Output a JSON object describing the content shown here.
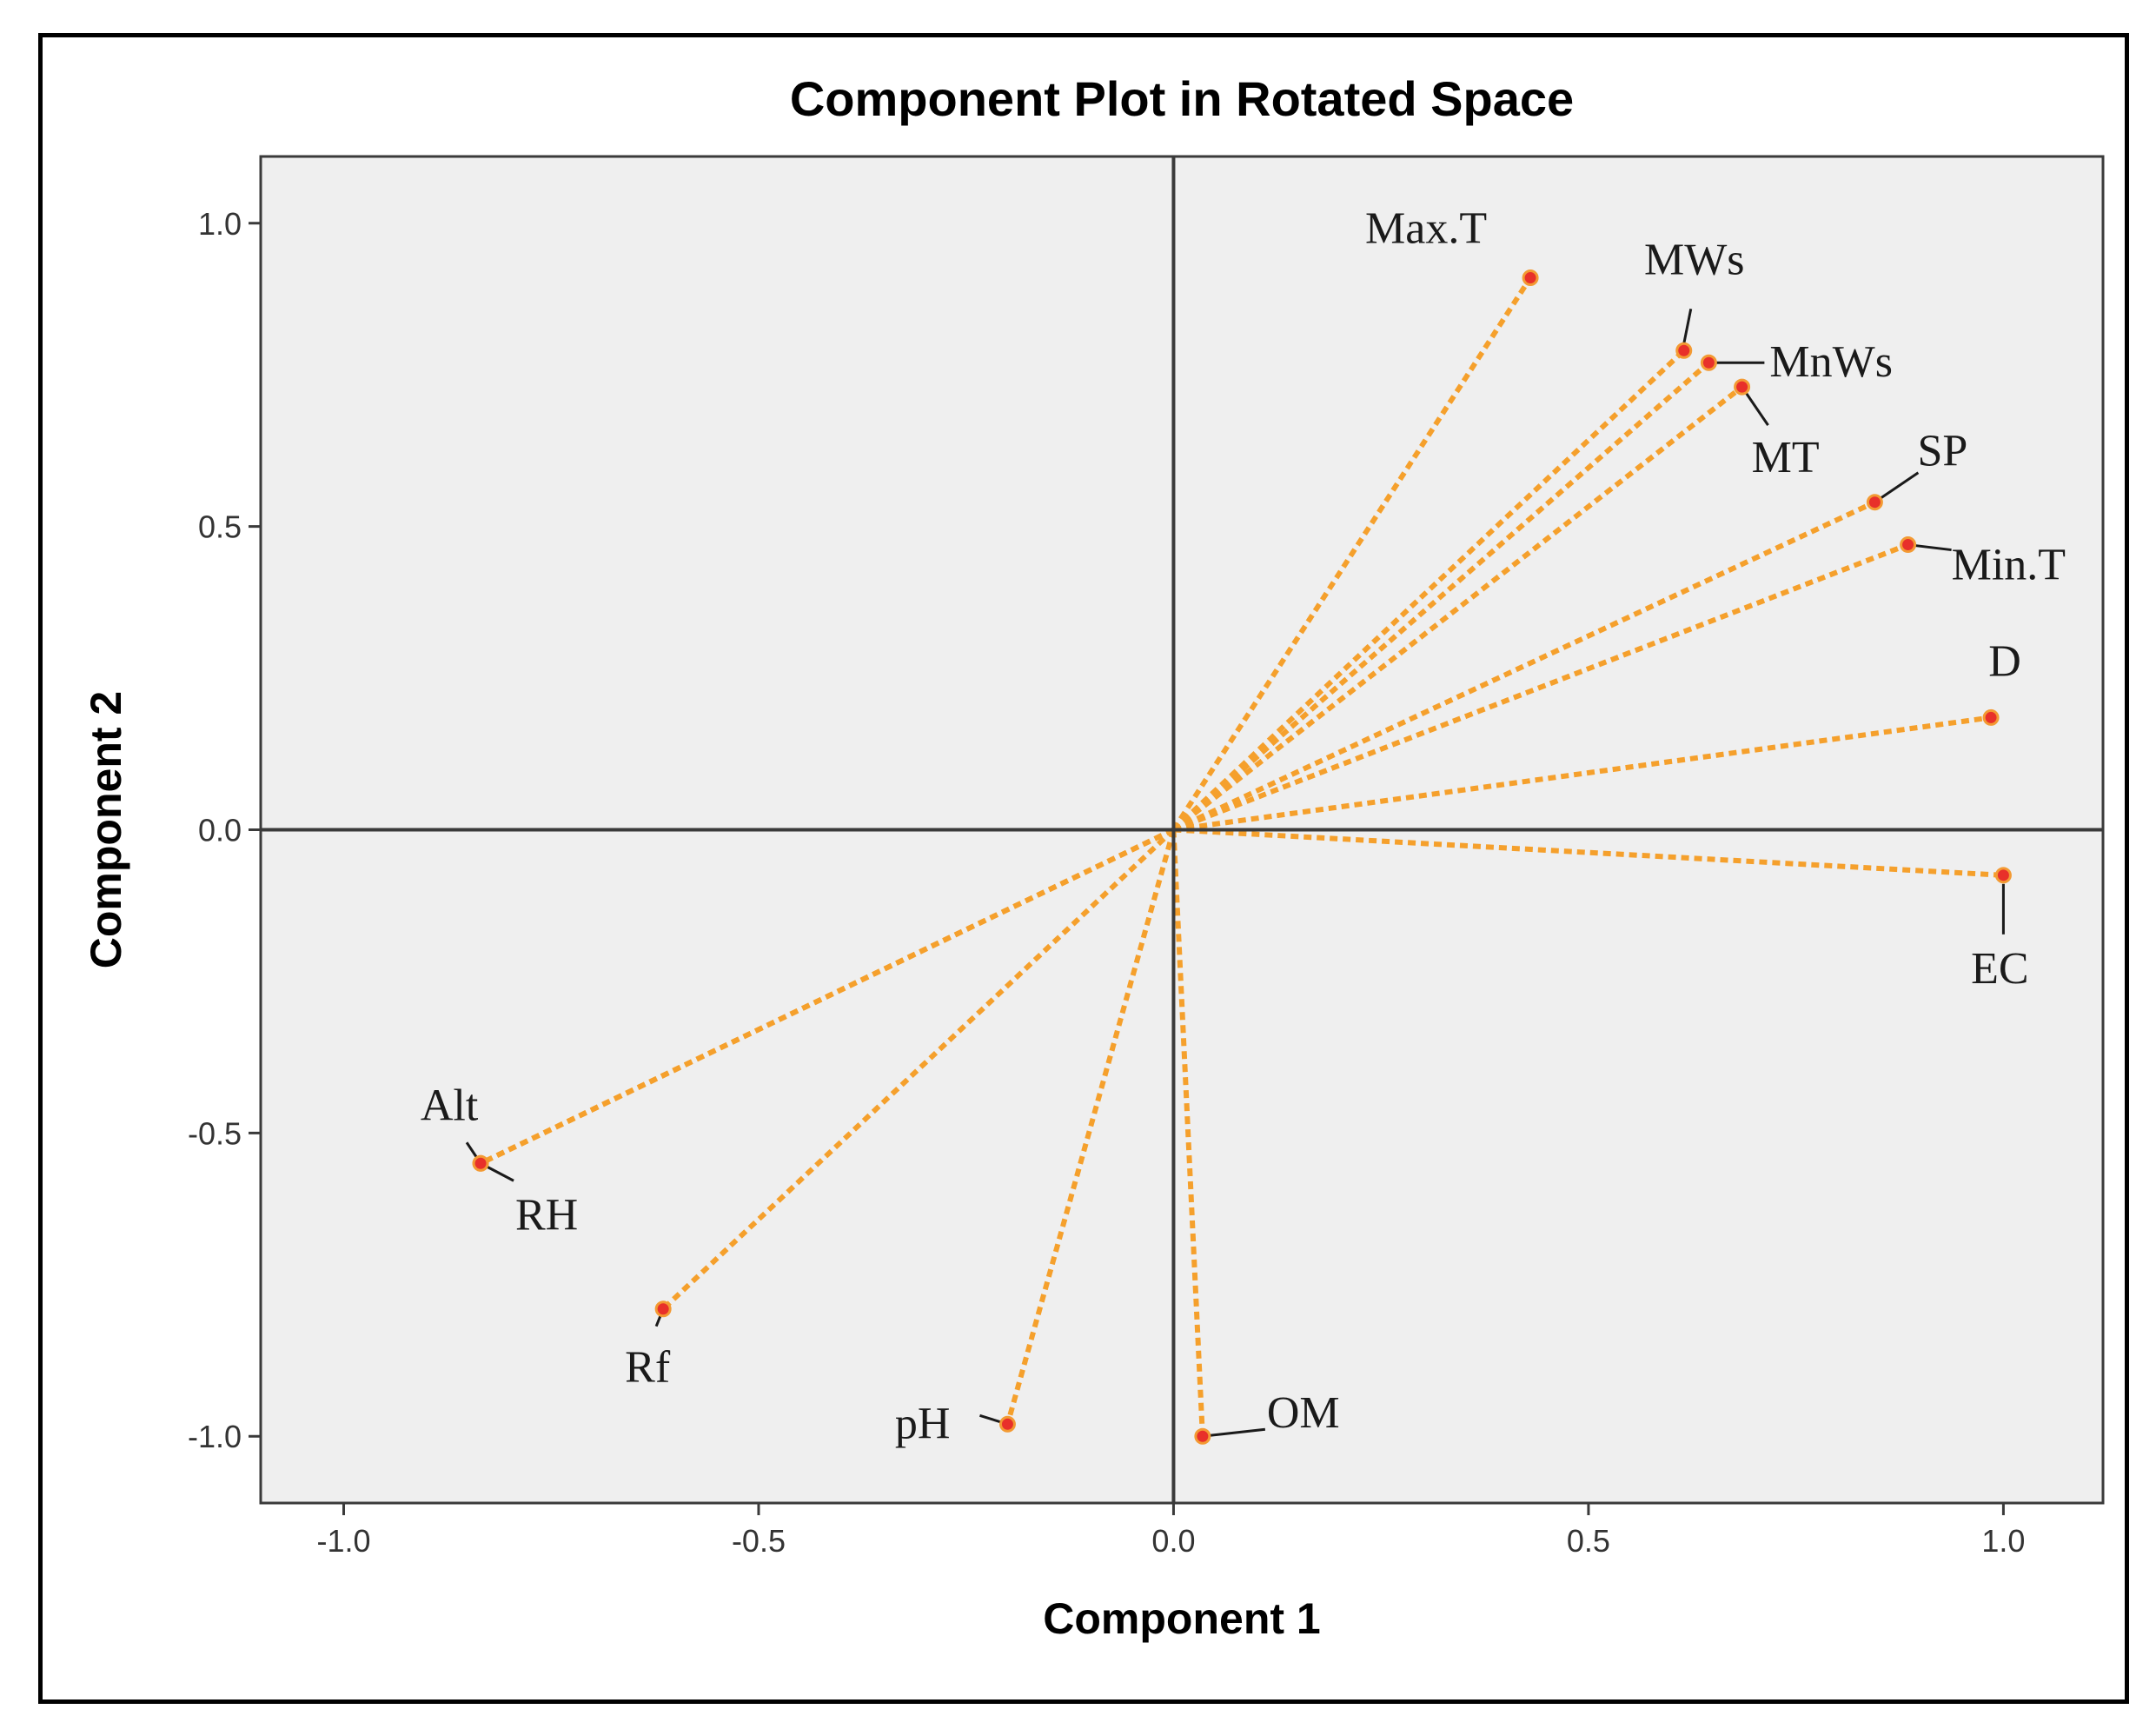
{
  "chart_data": {
    "type": "scatter",
    "title": "Component Plot in Rotated Space",
    "xlabel": "Component 1",
    "ylabel": "Component 2",
    "xlim": [
      -1.1,
      1.12
    ],
    "ylim": [
      -1.11,
      1.11
    ],
    "xticks": [
      -1.0,
      -0.5,
      0.0,
      0.5,
      1.0
    ],
    "yticks": [
      -1.0,
      -0.5,
      0.0,
      0.5,
      1.0
    ],
    "xtick_labels": [
      "-1.0",
      "-0.5",
      "0.0",
      "0.5",
      "1.0"
    ],
    "ytick_labels": [
      "-1.0",
      "-0.5",
      "0.0",
      "0.5",
      "1.0"
    ],
    "grid": false,
    "reference_lines": {
      "x": 0,
      "y": 0
    },
    "vectors_from_origin": true,
    "points": [
      {
        "label": "Max.T",
        "x": 0.43,
        "y": 0.91
      },
      {
        "label": "MWs",
        "x": 0.615,
        "y": 0.79
      },
      {
        "label": "MnWs",
        "x": 0.645,
        "y": 0.77
      },
      {
        "label": "MT",
        "x": 0.685,
        "y": 0.73
      },
      {
        "label": "SP",
        "x": 0.845,
        "y": 0.54
      },
      {
        "label": "Min.T",
        "x": 0.885,
        "y": 0.47
      },
      {
        "label": "D",
        "x": 0.985,
        "y": 0.185
      },
      {
        "label": "EC",
        "x": 1.0,
        "y": -0.075
      },
      {
        "label": "Alt",
        "x": -0.835,
        "y": -0.55
      },
      {
        "label": "RH",
        "x": -0.835,
        "y": -0.55
      },
      {
        "label": "Rf",
        "x": -0.615,
        "y": -0.79
      },
      {
        "label": "pH",
        "x": -0.2,
        "y": -0.98
      },
      {
        "label": "OM",
        "x": 0.035,
        "y": -1.0
      }
    ]
  },
  "colors": {
    "plot_background": "#efefef",
    "vector_line": "#f5a02c",
    "point_fill": "#e8302a",
    "point_stroke": "#f39a33",
    "axis_line": "#3a3a3a",
    "frame": "#000000"
  }
}
